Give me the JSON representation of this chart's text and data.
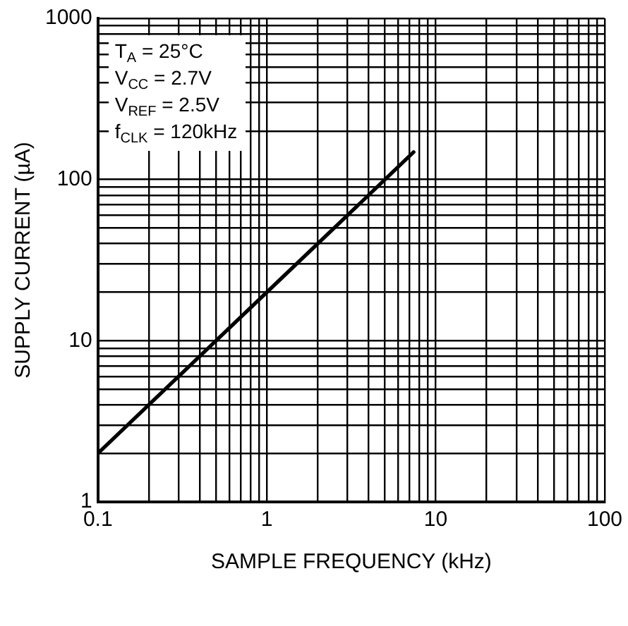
{
  "chart_data": {
    "type": "line",
    "xlabel": "SAMPLE FREQUENCY (kHz)",
    "ylabel": "SUPPLY CURRENT (µA)",
    "log": "xy",
    "grid": true,
    "marker": "none",
    "line_style": "solid",
    "annotations": [
      "T$_{A}$ = 25°C",
      "V$_{CC}$ = 2.7V",
      "V$_{REF}$ = 2.5V",
      "f$_{CLK}$ = 120kHz"
    ],
    "xlim": [
      0.1,
      100
    ],
    "ylim": [
      1,
      1000
    ],
    "xticks": [
      0.1,
      {
        "value": 0.2,
        "label": null
      },
      {
        "value": 0.3,
        "label": null
      },
      {
        "value": 0.4,
        "label": null
      },
      {
        "value": 0.5,
        "label": null
      },
      {
        "value": 0.6,
        "label": null
      },
      {
        "value": 0.7,
        "label": null
      },
      {
        "value": 0.8,
        "label": null
      },
      {
        "value": 0.9,
        "label": null
      },
      1,
      {
        "value": 2,
        "label": null
      },
      {
        "value": 3,
        "label": null
      },
      {
        "value": 4,
        "label": null
      },
      {
        "value": 5,
        "label": null
      },
      {
        "value": 6,
        "label": null
      },
      {
        "value": 7,
        "label": null
      },
      {
        "value": 8,
        "label": null
      },
      {
        "value": 9,
        "label": null
      },
      10,
      {
        "value": 20,
        "label": null
      },
      {
        "value": 30,
        "label": null
      },
      {
        "value": 40,
        "label": null
      },
      {
        "value": 50,
        "label": null
      },
      {
        "value": 60,
        "label": null
      },
      {
        "value": 70,
        "label": null
      },
      {
        "value": 80,
        "label": null
      },
      {
        "value": 90,
        "label": null
      },
      100
    ],
    "yticks": [
      1,
      {
        "value": 2,
        "label": null
      },
      {
        "value": 3,
        "label": null
      },
      {
        "value": 4,
        "label": null
      },
      {
        "value": 5,
        "label": null
      },
      {
        "value": 6,
        "label": null
      },
      {
        "value": 7,
        "label": null
      },
      {
        "value": 8,
        "label": null
      },
      {
        "value": 9,
        "label": null
      },
      10,
      {
        "value": 20,
        "label": null
      },
      {
        "value": 30,
        "label": null
      },
      {
        "value": 40,
        "label": null
      },
      {
        "value": 50,
        "label": null
      },
      {
        "value": 60,
        "label": null
      },
      {
        "value": 70,
        "label": null
      },
      {
        "value": 80,
        "label": null
      },
      {
        "value": 90,
        "label": null
      },
      100,
      {
        "value": 200,
        "label": null
      },
      {
        "value": 300,
        "label": null
      },
      {
        "value": 400,
        "label": null
      },
      {
        "value": 500,
        "label": null
      },
      {
        "value": 600,
        "label": null
      },
      {
        "value": 700,
        "label": null
      },
      {
        "value": 800,
        "label": null
      },
      {
        "value": 900,
        "label": null
      },
      1000
    ],
    "series": [
      {
        "color": "#000000",
        "x": [
          0.1,
          1,
          7.4
        ],
        "values": [
          2,
          20,
          148
        ]
      }
    ]
  }
}
